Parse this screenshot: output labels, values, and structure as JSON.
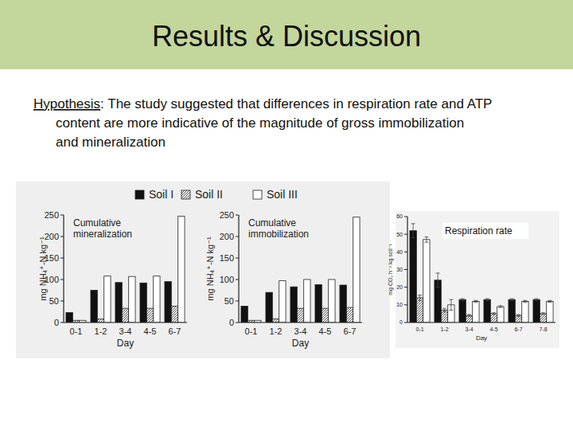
{
  "slide": {
    "title": "Results & Discussion",
    "hypothesis": {
      "label": "Hypothesis",
      "lines": [
        ": The study suggested that differences in respiration rate and ATP",
        "content are  more indicative of the magnitude of gross immobilization",
        "and mineralization"
      ]
    }
  },
  "chart_data": [
    {
      "type": "bar",
      "title": "Cumulative mineralization",
      "xlabel": "Day",
      "ylabel": "mg NH₄⁺-N kg⁻¹",
      "categories": [
        "0-1",
        "1-2",
        "3-4",
        "4-5",
        "6-7"
      ],
      "series": [
        {
          "name": "Soil I",
          "color": "#111111",
          "line_style": "solid",
          "values": [
            23,
            75,
            93,
            92,
            95
          ]
        },
        {
          "name": "Soil II",
          "color": "#222222",
          "line_style": "hatched",
          "values": [
            5,
            8,
            33,
            33,
            38
          ]
        },
        {
          "name": "Soil III",
          "color": "#ffffff",
          "line_style": "solid",
          "values": [
            5,
            108,
            107,
            108,
            247
          ]
        }
      ],
      "ylim": [
        0,
        250
      ],
      "yticks": [
        0,
        50,
        100,
        150,
        200,
        250
      ],
      "legend": "top"
    },
    {
      "type": "bar",
      "title": "Cumulative immobilization",
      "xlabel": "Day",
      "ylabel": "mg NH₄⁺-N kg⁻¹",
      "categories": [
        "0-1",
        "1-2",
        "3-4",
        "4-5",
        "6-7"
      ],
      "series": [
        {
          "color": "#111111",
          "line_style": "solid",
          "values": [
            38,
            70,
            83,
            88,
            87
          ]
        },
        {
          "color": "#222222",
          "line_style": "hatched",
          "values": [
            5,
            8,
            33,
            33,
            35
          ]
        },
        {
          "color": "#ffffff",
          "line_style": "solid",
          "values": [
            5,
            97,
            100,
            100,
            245
          ]
        }
      ],
      "ylim": [
        0,
        250
      ],
      "yticks": [
        0,
        50,
        100,
        150,
        200,
        250
      ]
    },
    {
      "type": "bar",
      "title": "Respiration rate",
      "xlabel": "Day",
      "ylabel": "mg CO₂ h⁻¹ kg soil⁻¹",
      "categories": [
        "0-1",
        "1-2",
        "3-4",
        "4-5",
        "6-7",
        "7-8"
      ],
      "series": [
        {
          "color": "#111111",
          "line_style": "solid",
          "values": [
            52,
            24,
            13,
            13,
            13,
            13
          ],
          "errors": [
            4,
            4,
            0.5,
            0.5,
            0.5,
            0.5
          ]
        },
        {
          "color": "#222222",
          "line_style": "hatched",
          "values": [
            14,
            7,
            4,
            5,
            4,
            5
          ],
          "errors": [
            1.5,
            1,
            0.5,
            0.5,
            0.5,
            0.5
          ]
        },
        {
          "color": "#ffffff",
          "line_style": "solid",
          "values": [
            47,
            10,
            12,
            9,
            12,
            12
          ],
          "errors": [
            1.5,
            3,
            0.5,
            0.5,
            0.5,
            0.5
          ]
        }
      ],
      "ylim": [
        0,
        60
      ],
      "yticks": [
        0,
        10,
        20,
        30,
        40,
        50,
        60
      ]
    }
  ]
}
